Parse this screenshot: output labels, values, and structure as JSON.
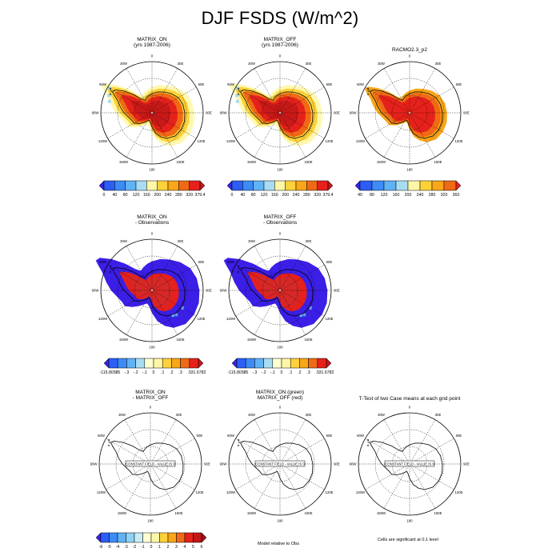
{
  "page_title": "DJF FSDS (W/m^2)",
  "lon_labels": [
    "0",
    "30E",
    "60E",
    "90E",
    "120E",
    "150E",
    "180",
    "150W",
    "120W",
    "90W",
    "60W",
    "30W"
  ],
  "constant_field_label": "CONSTANT FIELD - VALUE IS 0",
  "panels": {
    "r1c1": {
      "title1": "MATRIX_ON",
      "title2": "(yrs 1987-2006)"
    },
    "r1c2": {
      "title1": "MATRIX_OFF",
      "title2": "(yrs 1987-2006)"
    },
    "r1c3": {
      "title1": "RACMO2.3_p2",
      "title2": ""
    },
    "r2c1": {
      "title1": "MATRIX_ON",
      "title2": "- Observations"
    },
    "r2c2": {
      "title1": "MATRIX_OFF",
      "title2": "- Observations"
    },
    "r3c1": {
      "title1": "MATRIX_ON",
      "title2": "- MATRIX_OFF"
    },
    "r3c2": {
      "title1": "MATRIX_ON (green)",
      "title2": "MATRIX_OFF (red)"
    },
    "r3c3": {
      "title1": "T-Test of two Case means at each grid point",
      "title2": ""
    }
  },
  "colorbars": {
    "abs1": {
      "labels": [
        "0",
        "40",
        "80",
        "120",
        "160",
        "200",
        "240",
        "280",
        "320",
        "379.4"
      ],
      "colors": [
        "#3b1fe6",
        "#2a5ef5",
        "#3c8bf7",
        "#5fb3f5",
        "#a8dcf2",
        "#fff7a8",
        "#fdd13a",
        "#f9a619",
        "#f06a15",
        "#e5211b",
        "#c21718"
      ]
    },
    "abs2": {
      "labels": [
        "0",
        "40",
        "80",
        "120",
        "160",
        "200",
        "240",
        "280",
        "320",
        "379.4"
      ],
      "colors": [
        "#3b1fe6",
        "#2a5ef5",
        "#3c8bf7",
        "#5fb3f5",
        "#a8dcf2",
        "#fff7a8",
        "#fdd13a",
        "#f9a619",
        "#f06a15",
        "#e5211b",
        "#c21718"
      ]
    },
    "abs3": {
      "labels": [
        "40",
        "80",
        "120",
        "160",
        "200",
        "240",
        "280",
        "320",
        "360"
      ],
      "colors": [
        "#3b1fe6",
        "#2a5ef5",
        "#3c8bf7",
        "#5fb3f5",
        "#a8dcf2",
        "#fff7a8",
        "#fdd13a",
        "#f9a619",
        "#f06a15",
        "#e5211b"
      ]
    },
    "diff1": {
      "labels": [
        "-115.8038",
        "-.5",
        "-.3",
        "-.2",
        "-.1",
        "0",
        ".1",
        ".2",
        ".3",
        ".5",
        "31.6782"
      ],
      "colors": [
        "#3b1fe6",
        "#2a5ef5",
        "#3c8bf7",
        "#5fb3f5",
        "#a8dcf2",
        "#ffffd0",
        "#fff7a8",
        "#fdd13a",
        "#f9a619",
        "#f06a15",
        "#e5211b",
        "#c21718"
      ]
    },
    "diff2": {
      "labels": [
        "-115.8038",
        "-.5",
        "-.3",
        "-.2",
        "-.1",
        "0",
        ".1",
        ".2",
        ".3",
        ".5",
        "31.6782"
      ],
      "colors": [
        "#3b1fe6",
        "#2a5ef5",
        "#3c8bf7",
        "#5fb3f5",
        "#a8dcf2",
        "#ffffd0",
        "#fff7a8",
        "#fdd13a",
        "#f9a619",
        "#f06a15",
        "#e5211b",
        "#c21718"
      ]
    },
    "diff3": {
      "labels": [
        "-6",
        "-5",
        "-4",
        "-3",
        "-2",
        "-1",
        "0",
        "1",
        "2",
        "3",
        "4",
        "5",
        "6"
      ],
      "colors": [
        "#3b1fe6",
        "#2a5ef5",
        "#3c8bf7",
        "#5fb3f5",
        "#8fd0f4",
        "#c8ecf5",
        "#ffffd0",
        "#fff7a8",
        "#fdd13a",
        "#f9a619",
        "#f06a15",
        "#e5211b",
        "#c21718",
        "#9e1010"
      ]
    }
  },
  "notes": {
    "model_relative": "Model relative to Obs",
    "significance": "Cells are significant at 0.1 level"
  },
  "chart_data": [
    {
      "type": "heatmap",
      "title": "MATRIX_ON",
      "subtitle": "(yrs 1987-2006)",
      "projection": "south polar stereographic",
      "colorbar_range": [
        0,
        379.4
      ],
      "description_values": {
        "ice_sheet_interior": 360,
        "coastal_ring": 280
      }
    },
    {
      "type": "heatmap",
      "title": "MATRIX_OFF",
      "subtitle": "(yrs 1987-2006)",
      "projection": "south polar stereographic",
      "colorbar_range": [
        0,
        379.4
      ],
      "description_values": {
        "ice_sheet_interior": 360,
        "coastal_ring": 280
      }
    },
    {
      "type": "heatmap",
      "title": "RACMO2.3_p2",
      "projection": "south polar stereographic",
      "colorbar_range": [
        40,
        360
      ],
      "description_values": {
        "ice_sheet_interior": 350,
        "west_antarctica": 300
      }
    },
    {
      "type": "heatmap",
      "title": "MATRIX_ON",
      "subtitle": "- Observations",
      "projection": "south polar stereographic",
      "colorbar_range": [
        -115.8038,
        31.6782
      ],
      "description_values": {
        "ocean_ring": -115.8,
        "plateau": 31.7
      }
    },
    {
      "type": "heatmap",
      "title": "MATRIX_OFF",
      "subtitle": "- Observations",
      "projection": "south polar stereographic",
      "colorbar_range": [
        -115.8038,
        31.6782
      ],
      "description_values": {
        "ocean_ring": -115.8,
        "plateau": 31.7
      }
    },
    {
      "type": "heatmap",
      "title": "MATRIX_ON",
      "subtitle": "- MATRIX_OFF",
      "projection": "south polar stereographic",
      "colorbar_range": [
        -6,
        6
      ],
      "constant_value": 0
    },
    {
      "type": "heatmap",
      "title": "MATRIX_ON (green)",
      "subtitle": "MATRIX_OFF (red)",
      "projection": "south polar stereographic",
      "constant_value": 0
    },
    {
      "type": "heatmap",
      "title": "T-Test of two Case means at each grid point",
      "projection": "south polar stereographic",
      "constant_value": 0
    }
  ]
}
